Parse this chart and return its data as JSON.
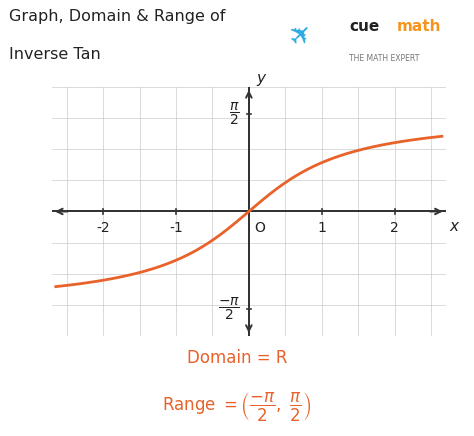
{
  "title_line1": "Graph, Domain & Range of",
  "title_line2": "Inverse Tan",
  "curve_color": "#E8622A",
  "curve_linewidth": 2.0,
  "axis_color": "#333333",
  "grid_color": "#cccccc",
  "background_color": "#ffffff",
  "plot_bg_color": "#f8f8f8",
  "xlim": [
    -2.7,
    2.7
  ],
  "ylim": [
    -2.0,
    2.0
  ],
  "xticks": [
    -2,
    -1,
    1,
    2
  ],
  "ytick_pi2": 1.5707963267948966,
  "orange_color": "#E8622A",
  "text_color": "#222222",
  "title_fontsize": 11.5,
  "label_fontsize": 10,
  "tick_fontsize": 10,
  "cuemath_blue": "#29ABE2",
  "cuemath_orange": "#F7941D"
}
